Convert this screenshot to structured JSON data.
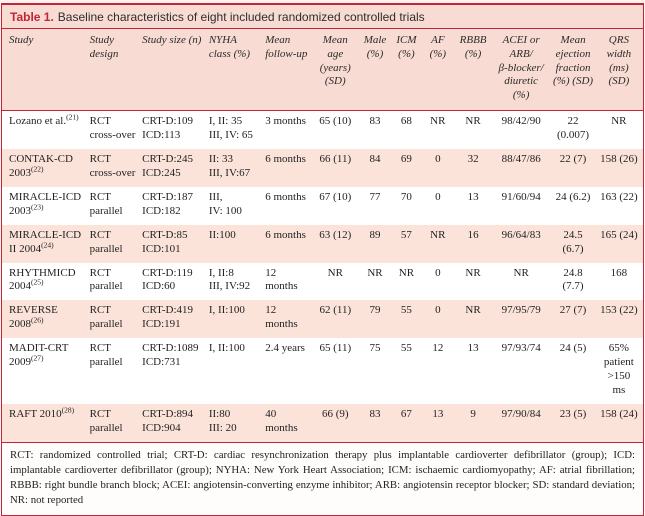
{
  "table": {
    "label": "Table 1.",
    "title": "Baseline characteristics of eight included randomized controlled trials",
    "columns": [
      {
        "key": "study",
        "label": "Study"
      },
      {
        "key": "design",
        "label": "Study design"
      },
      {
        "key": "size",
        "label": "Study size (n)"
      },
      {
        "key": "nyha",
        "label": "NYHA\nclass (%)"
      },
      {
        "key": "followup",
        "label": "Mean\nfollow-up"
      },
      {
        "key": "age",
        "label": "Mean age\n(years) (SD)"
      },
      {
        "key": "male",
        "label": "Male\n(%)"
      },
      {
        "key": "icm",
        "label": "ICM\n(%)"
      },
      {
        "key": "af",
        "label": "AF\n(%)"
      },
      {
        "key": "rbbb",
        "label": "RBBB\n(%)"
      },
      {
        "key": "acei",
        "label": "ACEI or\nARB/\nβ-blocker/\ndiuretic (%)"
      },
      {
        "key": "ef",
        "label": "Mean\nejection\nfraction\n(%) (SD)"
      },
      {
        "key": "qrs",
        "label": "QRS width\n(ms) (SD)"
      }
    ],
    "rows": [
      {
        "study": "Lozano et al.",
        "ref": "(21)",
        "design": "RCT\ncross-over",
        "size": "CRT-D:109\nICD:113",
        "nyha": "I, II: 35\nIII, IV: 65",
        "followup": "3 months",
        "age": "65 (10)",
        "male": "83",
        "icm": "68",
        "af": "NR",
        "rbbb": "NR",
        "acei": "98/42/90",
        "ef": "22 (0.007)",
        "qrs": "NR"
      },
      {
        "study": "CONTAK-CD 2003",
        "ref": "(22)",
        "design": "RCT\ncross-over",
        "size": "CRT-D:245\nICD:245",
        "nyha": "II: 33\nIII, IV:67",
        "followup": "6 months",
        "age": "66 (11)",
        "male": "84",
        "icm": "69",
        "af": "0",
        "rbbb": "32",
        "acei": "88/47/86",
        "ef": "22 (7)",
        "qrs": "158 (26)"
      },
      {
        "study": "MIRACLE-ICD 2003",
        "ref": "(23)",
        "design": "RCT\nparallel",
        "size": "CRT-D:187\nICD:182",
        "nyha": "III,\nIV: 100",
        "followup": "6 months",
        "age": "67 (10)",
        "male": "77",
        "icm": "70",
        "af": "0",
        "rbbb": "13",
        "acei": "91/60/94",
        "ef": "24 (6.2)",
        "qrs": "163 (22)"
      },
      {
        "study": "MIRACLE-ICD II 2004",
        "ref": "(24)",
        "design": "RCT\nparallel",
        "size": "CRT-D:85\nICD:101",
        "nyha": "II:100",
        "followup": "6 months",
        "age": "63 (12)",
        "male": "89",
        "icm": "57",
        "af": "NR",
        "rbbb": "16",
        "acei": "96/64/83",
        "ef": "24.5 (6.7)",
        "qrs": "165 (24)"
      },
      {
        "study": "RHYTHMICD 2004",
        "ref": "(25)",
        "design": "RCT\nparallel",
        "size": "CRT-D:119\nICD:60",
        "nyha": "I, II:8\nIII, IV:92",
        "followup": "12 months",
        "age": "NR",
        "male": "NR",
        "icm": "NR",
        "af": "0",
        "rbbb": "NR",
        "acei": "NR",
        "ef": "24.8 (7.7)",
        "qrs": "168"
      },
      {
        "study": "REVERSE 2008",
        "ref": "(26)",
        "design": "RCT\nparallel",
        "size": "CRT-D:419\nICD:191",
        "nyha": "I, II:100",
        "followup": "12 months",
        "age": "62 (11)",
        "male": "79",
        "icm": "55",
        "af": "0",
        "rbbb": "NR",
        "acei": "97/95/79",
        "ef": "27 (7)",
        "qrs": "153 (22)"
      },
      {
        "study": "MADIT-CRT 2009",
        "ref": "(27)",
        "design": "RCT\nparallel",
        "size": "CRT-D:1089\nICD:731",
        "nyha": "I, II:100",
        "followup": "2.4 years",
        "age": "65 (11)",
        "male": "75",
        "icm": "55",
        "af": "12",
        "rbbb": "13",
        "acei": "97/93/74",
        "ef": "24 (5)",
        "qrs": "65% patient >150 ms"
      },
      {
        "study": "RAFT 2010",
        "ref": "(28)",
        "design": "RCT\nparallel",
        "size": "CRT-D:894\nICD:904",
        "nyha": "II:80\nIII: 20",
        "followup": "40 months",
        "age": "66 (9)",
        "male": "83",
        "icm": "67",
        "af": "13",
        "rbbb": "9",
        "acei": "97/90/84",
        "ef": "23 (5)",
        "qrs": "158 (24)"
      }
    ],
    "footnote": "RCT: randomized controlled trial; CRT-D: cardiac resynchronization therapy plus implantable cardioverter defibrillator (group); ICD: implantable cardioverter defibrillator (group); NYHA: New York Heart Association; ICM: ischaemic cardiomyopathy; AF: atrial fibrillation; RBBB: right bundle branch block; ACEI: angiotensin-converting enzyme inhibitor; ARB: angiotensin receptor blocker; SD: standard deviation; NR: not reported"
  },
  "colors": {
    "accent_red": "#c2243a",
    "header_pink": "#f8dbd2",
    "row_stripe_pink": "#fbe3da",
    "page_background": "#fdf2ed"
  }
}
